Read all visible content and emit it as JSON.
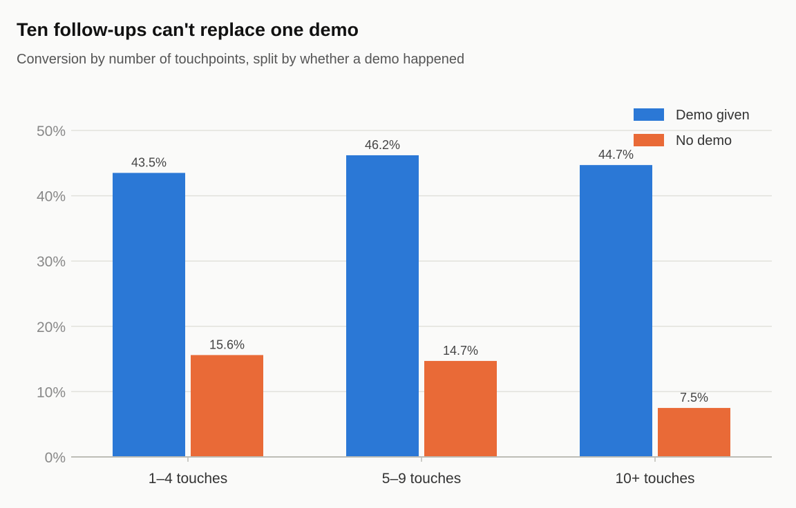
{
  "header": {
    "title": "Ten follow-ups can't replace one demo",
    "subtitle": "Conversion by number of touchpoints, split by whether a demo happened"
  },
  "chart_data": {
    "type": "bar",
    "title": "Ten follow-ups can't replace one demo",
    "subtitle": "Conversion by number of touchpoints, split by whether a demo happened",
    "categories": [
      "1–4 touches",
      "5–9 touches",
      "10+ touches"
    ],
    "series": [
      {
        "name": "Demo given",
        "values": [
          43.5,
          46.2,
          44.7
        ],
        "color": "#2b78d6"
      },
      {
        "name": "No demo",
        "values": [
          15.6,
          14.7,
          7.5
        ],
        "color": "#e96a37"
      }
    ],
    "data_labels": [
      [
        "43.5%",
        "46.2%",
        "44.7%"
      ],
      [
        "15.6%",
        "14.7%",
        "7.5%"
      ]
    ],
    "xlabel": "",
    "ylabel": "",
    "ylim": [
      0,
      50
    ],
    "yticks": [
      0,
      10,
      20,
      30,
      40,
      50
    ],
    "ytick_labels": [
      "0%",
      "10%",
      "20%",
      "30%",
      "40%",
      "50%"
    ],
    "grid": true,
    "legend_position": "top-right"
  }
}
